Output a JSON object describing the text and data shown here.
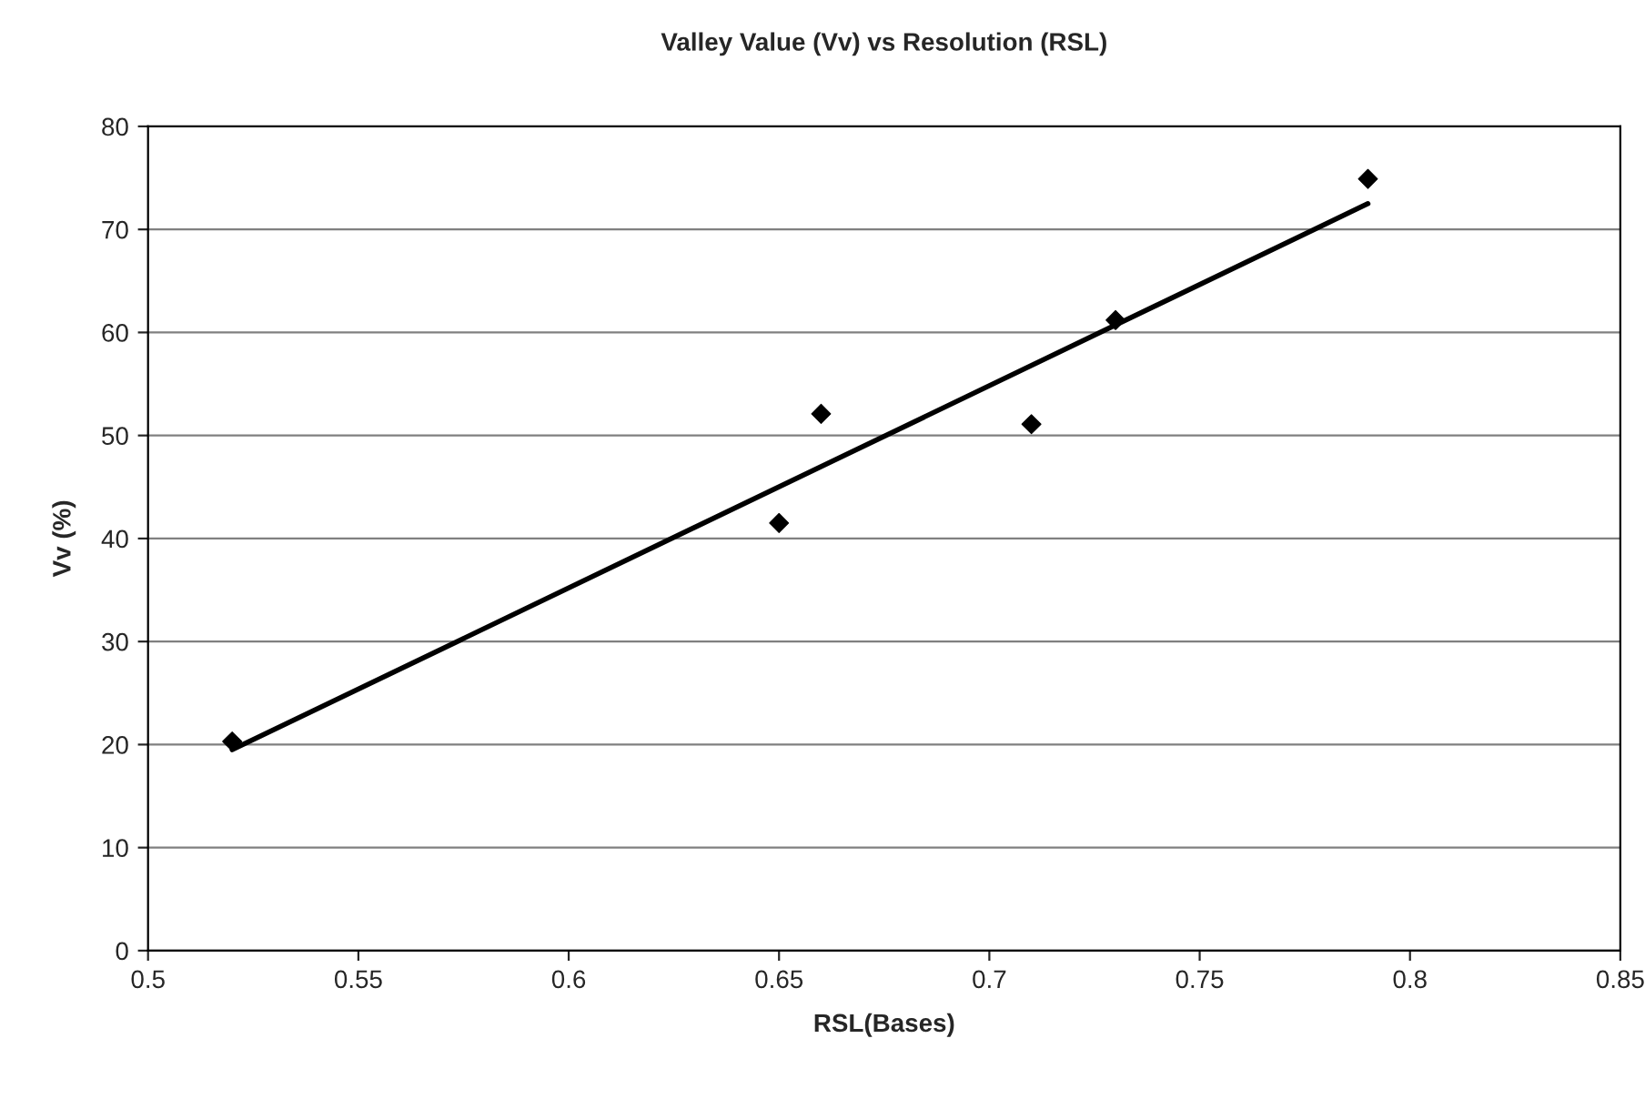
{
  "chart_data": {
    "type": "scatter",
    "title": "Valley Value (Vv) vs Resolution (RSL)",
    "xlabel": "RSL(Bases)",
    "ylabel": "Vv (%)",
    "xlim": [
      0.5,
      0.85
    ],
    "xticks": [
      0.5,
      0.55,
      0.6,
      0.65,
      0.7,
      0.75,
      0.8,
      0.85
    ],
    "ylim": [
      0,
      80
    ],
    "yticks": [
      0,
      10,
      20,
      30,
      40,
      50,
      60,
      70,
      80
    ],
    "grid": "y",
    "series": [
      {
        "marker": "diamond",
        "color": "#000000",
        "x": [
          0.52,
          0.65,
          0.66,
          0.71,
          0.73,
          0.79
        ],
        "values": [
          20.3,
          41.5,
          52.1,
          51.1,
          61.2,
          74.9
        ]
      },
      {
        "type": "line",
        "marker": "none",
        "color": "#000000",
        "x": [
          0.52,
          0.79
        ],
        "values": [
          19.5,
          72.5
        ]
      }
    ]
  }
}
